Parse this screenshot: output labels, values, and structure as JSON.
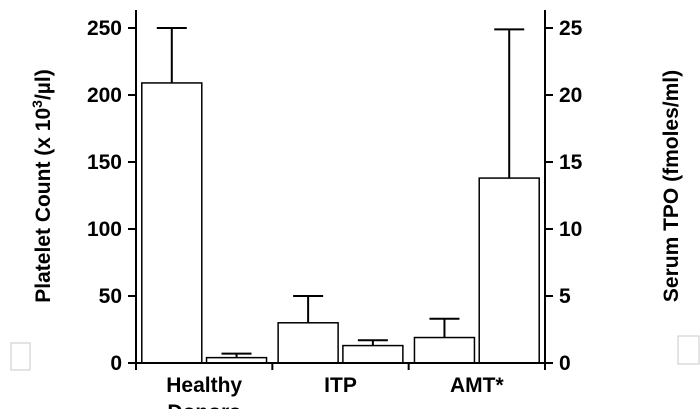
{
  "chart_data": {
    "type": "bar",
    "categories": [
      "Healthy Donors",
      "ITP",
      "AMT*"
    ],
    "category_lines": [
      [
        "Healthy",
        "Donors"
      ],
      [
        "ITP"
      ],
      [
        "AMT*"
      ]
    ],
    "left_axis": {
      "label": "Platelet Count (x 10³/µl)",
      "label_parts": [
        "Platelet Count (x 10",
        "3",
        "/µl)"
      ],
      "ylim": [
        0,
        250
      ],
      "ticks": [
        0,
        50,
        100,
        150,
        200,
        250
      ]
    },
    "right_axis": {
      "label": "Serum TPO (fmoles/ml)",
      "ylim": [
        0,
        25
      ],
      "ticks": [
        0,
        5,
        10,
        15,
        20,
        25
      ]
    },
    "series": [
      {
        "axis": "left",
        "values": [
          209,
          30,
          19
        ],
        "errors": [
          41,
          20,
          14
        ]
      },
      {
        "axis": "right",
        "values": [
          0.4,
          1.3,
          13.8
        ],
        "errors": [
          0.3,
          0.4,
          11.1
        ]
      }
    ],
    "colors": {
      "bar_fill": "#ffffff",
      "bar_stroke": "#000000",
      "legend_swatch_stroke": "#c8c8c8"
    }
  }
}
